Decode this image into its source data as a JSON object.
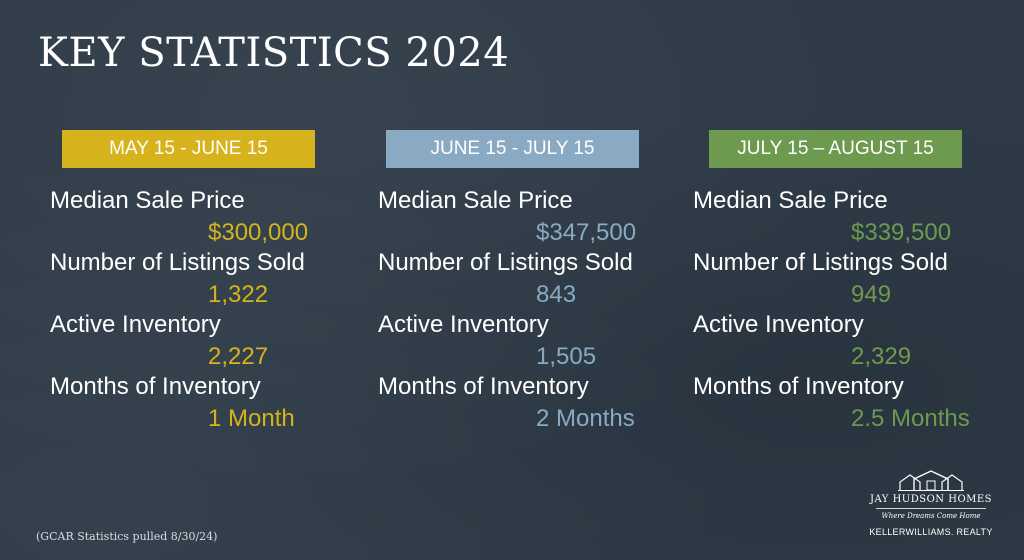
{
  "title": "KEY STATISTICS 2024",
  "colors": {
    "background": "#2e3b47",
    "yellow": "#d6b31c",
    "blue": "#8aaac4",
    "green": "#6d9a4e"
  },
  "columns": [
    {
      "period": "MAY 15 - JUNE 15",
      "accent": "#d6b31c",
      "median_sale_price_label": "Median Sale Price",
      "median_sale_price": "$300,000",
      "listings_sold_label": "Number of Listings Sold",
      "listings_sold": "1,322",
      "active_inventory_label": "Active Inventory",
      "active_inventory": "2,227",
      "months_inventory_label": "Months of Inventory",
      "months_inventory": "1 Month"
    },
    {
      "period": "JUNE 15 - JULY 15",
      "accent": "#8aaac4",
      "median_sale_price_label": "Median Sale Price",
      "median_sale_price": "$347,500",
      "listings_sold_label": "Number of Listings Sold",
      "listings_sold": "843",
      "active_inventory_label": "Active Inventory",
      "active_inventory": "1,505",
      "months_inventory_label": "Months of Inventory",
      "months_inventory": "2 Months"
    },
    {
      "period": "JULY 15 – AUGUST 15",
      "accent": "#6d9a4e",
      "median_sale_price_label": "Median Sale Price",
      "median_sale_price": "$339,500",
      "listings_sold_label": "Number of Listings Sold",
      "listings_sold": "949",
      "active_inventory_label": "Active Inventory",
      "active_inventory": "2,329",
      "months_inventory_label": "Months of Inventory",
      "months_inventory": "2.5 Months"
    }
  ],
  "footnote": "(GCAR Statistics pulled 8/30/24)",
  "logo": {
    "icon": "houses-logo-icon",
    "name": "JAY HUDSON HOMES",
    "tagline": "Where Dreams Come Home",
    "brokerage": "KELLERWILLIAMS. REALTY"
  }
}
